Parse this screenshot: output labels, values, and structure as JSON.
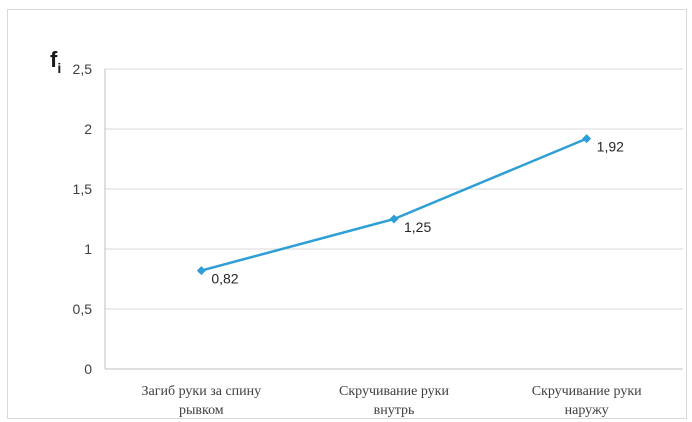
{
  "chart_data": {
    "type": "line",
    "ylabel": "f",
    "ylabel_subscript": "i",
    "categories": [
      [
        "Загиб руки за спину",
        "рывком"
      ],
      [
        "Скручивание руки",
        "внутрь"
      ],
      [
        "Скручивание руки",
        "наружу"
      ]
    ],
    "series": [
      {
        "values": [
          0.82,
          1.25,
          1.92
        ],
        "labels": [
          "0,82",
          "1,25",
          "1,92"
        ]
      }
    ],
    "yticks": [
      "0",
      "0,5",
      "1",
      "1,5",
      "2",
      "2,5"
    ],
    "ytick_values": [
      0,
      0.5,
      1,
      1.5,
      2,
      2.5
    ],
    "ylim": [
      0,
      2.5
    ],
    "grid": "horizontal",
    "legend": "none",
    "colors": {
      "line": "#2e9fd6",
      "grid": "#d9d9d9",
      "axis": "#bfbfbf"
    }
  }
}
